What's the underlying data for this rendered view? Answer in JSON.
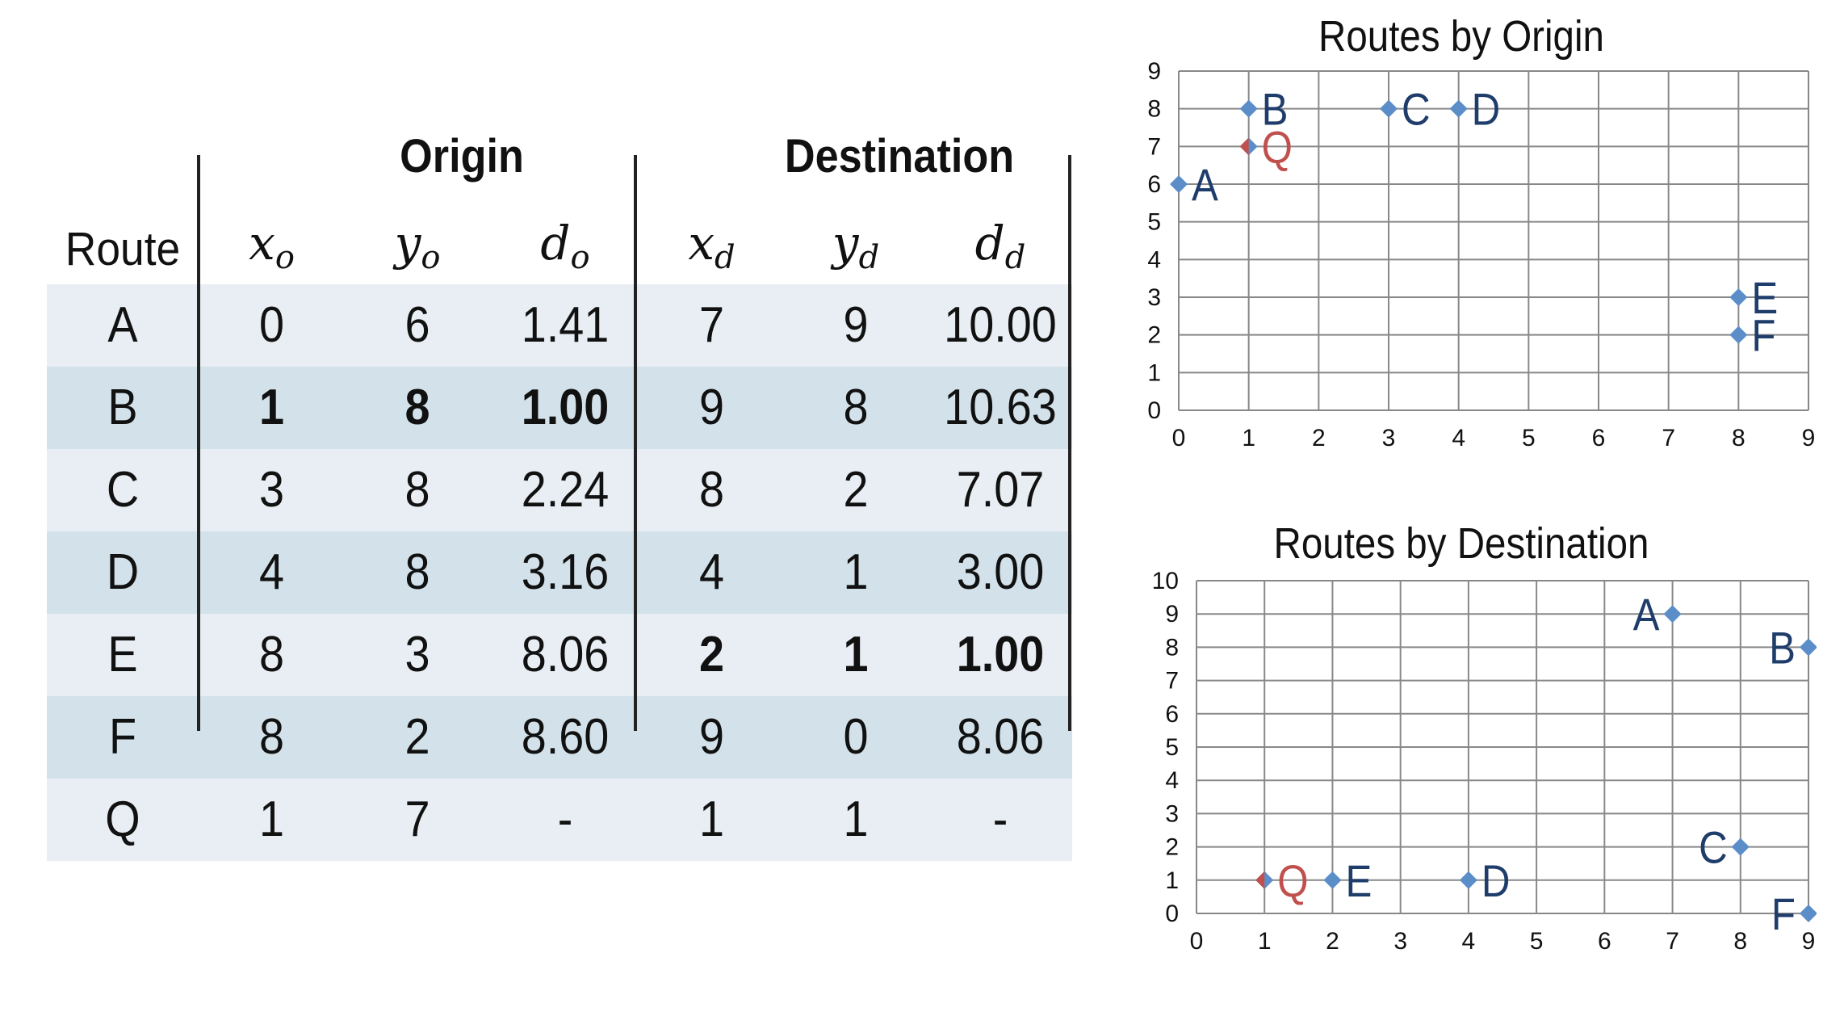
{
  "table": {
    "group_headers": {
      "origin": "Origin",
      "destination": "Destination"
    },
    "columns": [
      {
        "key": "route",
        "label": "Route"
      },
      {
        "key": "xo",
        "base": "x",
        "sub": "o"
      },
      {
        "key": "yo",
        "base": "y",
        "sub": "o"
      },
      {
        "key": "do",
        "base": "d",
        "sub": "o"
      },
      {
        "key": "xd",
        "base": "x",
        "sub": "d"
      },
      {
        "key": "yd",
        "base": "y",
        "sub": "d"
      },
      {
        "key": "dd",
        "base": "d",
        "sub": "d"
      }
    ],
    "rows": [
      {
        "cells": [
          "A",
          "0",
          "6",
          "1.41",
          "7",
          "9",
          "10.00"
        ],
        "bold": []
      },
      {
        "cells": [
          "B",
          "1",
          "8",
          "1.00",
          "9",
          "8",
          "10.63"
        ],
        "bold": [
          1,
          2,
          3
        ]
      },
      {
        "cells": [
          "C",
          "3",
          "8",
          "2.24",
          "8",
          "2",
          "7.07"
        ],
        "bold": []
      },
      {
        "cells": [
          "D",
          "4",
          "8",
          "3.16",
          "4",
          "1",
          "3.00"
        ],
        "bold": []
      },
      {
        "cells": [
          "E",
          "8",
          "3",
          "8.06",
          "2",
          "1",
          "1.00"
        ],
        "bold": [
          4,
          5,
          6
        ]
      },
      {
        "cells": [
          "F",
          "8",
          "2",
          "8.60",
          "9",
          "0",
          "8.06"
        ],
        "bold": []
      },
      {
        "cells": [
          "Q",
          "1",
          "7",
          "-",
          "1",
          "1",
          "-"
        ],
        "bold": []
      }
    ]
  },
  "colors": {
    "point": "#5b8ec9",
    "query_point": "#c0504d",
    "label": "#1f3d6b",
    "query_label": "#c0504d",
    "grid": "#888888",
    "row_light": "#e8eef3",
    "row_dark": "#d3e2ea"
  },
  "chart_data": [
    {
      "type": "scatter",
      "title": "Routes by Origin",
      "xlabel": "",
      "ylabel": "",
      "xlim": [
        0,
        9
      ],
      "ylim": [
        0,
        9
      ],
      "xticks": [
        "0",
        "1",
        "2",
        "3",
        "4",
        "5",
        "6",
        "7",
        "8",
        "9"
      ],
      "yticks": [
        "0",
        "1",
        "2",
        "3",
        "4",
        "5",
        "6",
        "7",
        "8",
        "9"
      ],
      "grid": true,
      "points": [
        {
          "label": "A",
          "x": 0,
          "y": 6,
          "query": false,
          "label_side": "right"
        },
        {
          "label": "B",
          "x": 1,
          "y": 8,
          "query": false,
          "label_side": "right"
        },
        {
          "label": "C",
          "x": 3,
          "y": 8,
          "query": false,
          "label_side": "right"
        },
        {
          "label": "D",
          "x": 4,
          "y": 8,
          "query": false,
          "label_side": "right"
        },
        {
          "label": "E",
          "x": 8,
          "y": 3,
          "query": false,
          "label_side": "right"
        },
        {
          "label": "F",
          "x": 8,
          "y": 2,
          "query": false,
          "label_side": "right"
        },
        {
          "label": "Q",
          "x": 1,
          "y": 7,
          "query": true,
          "label_side": "right"
        }
      ]
    },
    {
      "type": "scatter",
      "title": "Routes by Destination",
      "xlabel": "",
      "ylabel": "",
      "xlim": [
        0,
        9
      ],
      "ylim": [
        0,
        10
      ],
      "xticks": [
        "0",
        "1",
        "2",
        "3",
        "4",
        "5",
        "6",
        "7",
        "8",
        "9"
      ],
      "yticks": [
        "0",
        "1",
        "2",
        "3",
        "4",
        "5",
        "6",
        "7",
        "8",
        "9",
        "10"
      ],
      "grid": true,
      "points": [
        {
          "label": "A",
          "x": 7,
          "y": 9,
          "query": false,
          "label_side": "left"
        },
        {
          "label": "B",
          "x": 9,
          "y": 8,
          "query": false,
          "label_side": "left"
        },
        {
          "label": "C",
          "x": 8,
          "y": 2,
          "query": false,
          "label_side": "left"
        },
        {
          "label": "D",
          "x": 4,
          "y": 1,
          "query": false,
          "label_side": "right"
        },
        {
          "label": "E",
          "x": 2,
          "y": 1,
          "query": false,
          "label_side": "right"
        },
        {
          "label": "F",
          "x": 9,
          "y": 0,
          "query": false,
          "label_side": "left"
        },
        {
          "label": "Q",
          "x": 1,
          "y": 1,
          "query": true,
          "label_side": "right"
        }
      ]
    }
  ]
}
